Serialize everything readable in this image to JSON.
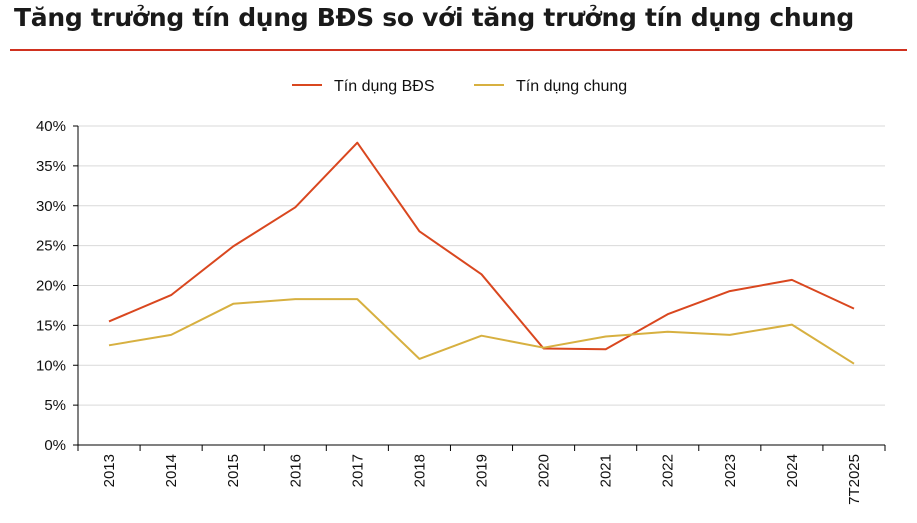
{
  "title": "Tăng trưởng tín dụng BĐS so với tăng trưởng tín dụng chung",
  "chart_data": {
    "type": "line",
    "title": "Tăng trưởng tín dụng BĐS so với tăng trưởng tín dụng chung",
    "categories": [
      "2013",
      "2014",
      "2015",
      "2016",
      "2017",
      "2018",
      "2019",
      "2020",
      "2021",
      "2022",
      "2023",
      "2024",
      "7T2025"
    ],
    "series": [
      {
        "name": "Tín dụng BĐS",
        "color": "#d9471f",
        "values": [
          15.5,
          18.8,
          24.9,
          29.8,
          37.9,
          26.8,
          21.4,
          12.1,
          12.0,
          16.4,
          19.3,
          20.7,
          17.1
        ]
      },
      {
        "name": "Tín dụng chung",
        "color": "#d7b040",
        "values": [
          12.5,
          13.8,
          17.7,
          18.3,
          18.3,
          10.8,
          13.7,
          12.2,
          13.6,
          14.2,
          13.8,
          15.1,
          10.2
        ]
      }
    ],
    "y_ticks": [
      "0%",
      "5%",
      "10%",
      "15%",
      "20%",
      "25%",
      "30%",
      "35%",
      "40%"
    ],
    "ylim": [
      0,
      40
    ],
    "y_tick_step": 5,
    "grid": true,
    "legend": "top-center",
    "xlabel": "",
    "ylabel": ""
  }
}
